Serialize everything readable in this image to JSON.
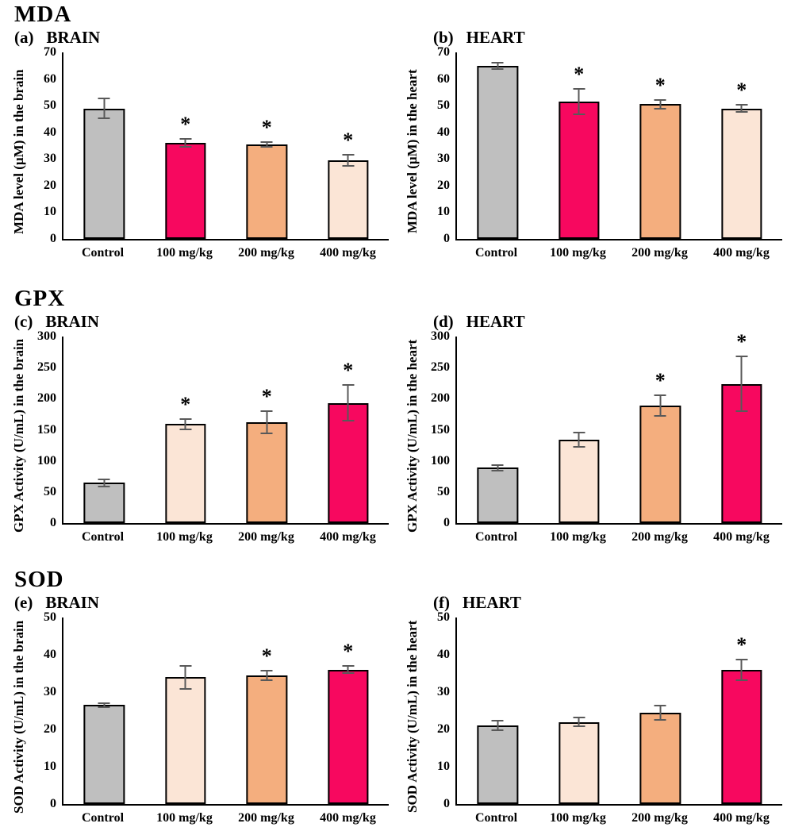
{
  "figure": {
    "background": "#FFFFFF",
    "significance_marker": "*",
    "palette": {
      "gray": "#BFBFBF",
      "pink": "#F7085F",
      "orange": "#F4AE7E",
      "cream": "#FBE5D6",
      "error_bar": "#595959",
      "bar_border": "#000000",
      "axis": "#000000",
      "text": "#000000"
    }
  },
  "chart_data": [
    {
      "type": "bar",
      "group_title": "MDA",
      "label": "(a)",
      "organ": "BRAIN",
      "ylabel": "MDA level (µM) in the brain",
      "xlabel": "",
      "ylim": [
        0,
        70
      ],
      "yticks": [
        "0",
        "10",
        "20",
        "30",
        "40",
        "50",
        "60",
        "70"
      ],
      "categories": [
        "Control",
        "100 mg/kg",
        "200 mg/kg",
        "400 mg/kg"
      ],
      "values": [
        49,
        36,
        35.5,
        29.5
      ],
      "errors": [
        4,
        1.8,
        1.2,
        2.5
      ],
      "significant": [
        false,
        true,
        true,
        true
      ],
      "colors": [
        "gray",
        "pink",
        "orange",
        "cream"
      ],
      "grid": false,
      "legend": null
    },
    {
      "type": "bar",
      "group_title": null,
      "label": "(b)",
      "organ": "HEART",
      "ylabel": "MDA level (µM) in the heart",
      "xlabel": "",
      "ylim": [
        0,
        70
      ],
      "yticks": [
        "0",
        "10",
        "20",
        "30",
        "40",
        "50",
        "60",
        "70"
      ],
      "categories": [
        "Control",
        "100 mg/kg",
        "200 mg/kg",
        "400 mg/kg"
      ],
      "values": [
        65,
        51.5,
        50.5,
        49
      ],
      "errors": [
        1.5,
        5,
        2,
        1.5
      ],
      "significant": [
        false,
        true,
        true,
        true
      ],
      "colors": [
        "gray",
        "pink",
        "orange",
        "cream"
      ],
      "grid": false,
      "legend": null
    },
    {
      "type": "bar",
      "group_title": "GPX",
      "label": "(c)",
      "organ": "BRAIN",
      "ylabel": "GPX Activity (U/mL) in the brain",
      "xlabel": "",
      "ylim": [
        0,
        300
      ],
      "yticks": [
        "0",
        "50",
        "100",
        "150",
        "200",
        "250",
        "300"
      ],
      "categories": [
        "Control",
        "100 mg/kg",
        "200 mg/kg",
        "400 mg/kg"
      ],
      "values": [
        65,
        159,
        162,
        193
      ],
      "errors": [
        7,
        10,
        19,
        30
      ],
      "significant": [
        false,
        true,
        true,
        true
      ],
      "colors": [
        "gray",
        "cream",
        "orange",
        "pink"
      ],
      "grid": false,
      "legend": null
    },
    {
      "type": "bar",
      "group_title": null,
      "label": "(d)",
      "organ": "HEART",
      "ylabel": "GPX Activity (U/mL) in the heart",
      "xlabel": "",
      "ylim": [
        0,
        300
      ],
      "yticks": [
        "0",
        "50",
        "100",
        "150",
        "200",
        "250",
        "300"
      ],
      "categories": [
        "Control",
        "100 mg/kg",
        "200 mg/kg",
        "400 mg/kg"
      ],
      "values": [
        89,
        134,
        189,
        224
      ],
      "errors": [
        6,
        13,
        18,
        45
      ],
      "significant": [
        false,
        false,
        true,
        true
      ],
      "colors": [
        "gray",
        "cream",
        "orange",
        "pink"
      ],
      "grid": false,
      "legend": null
    },
    {
      "type": "bar",
      "group_title": "SOD",
      "label": "(e)",
      "organ": "BRAIN",
      "ylabel": "SOD Activity (U/mL) in the brain",
      "xlabel": "",
      "ylim": [
        0,
        50
      ],
      "yticks": [
        "0",
        "10",
        "20",
        "30",
        "40",
        "50"
      ],
      "categories": [
        "Control",
        "100 mg/kg",
        "200 mg/kg",
        "400 mg/kg"
      ],
      "values": [
        26.5,
        34,
        34.5,
        36
      ],
      "errors": [
        0.7,
        3.3,
        1.5,
        1.2
      ],
      "significant": [
        false,
        false,
        true,
        true
      ],
      "colors": [
        "gray",
        "cream",
        "orange",
        "pink"
      ],
      "grid": false,
      "legend": null
    },
    {
      "type": "bar",
      "group_title": null,
      "label": "(f)",
      "organ": "HEART",
      "ylabel": "SOD Activity (U/mL) in the heart",
      "xlabel": "",
      "ylim": [
        0,
        50
      ],
      "yticks": [
        "0",
        "10",
        "20",
        "30",
        "40",
        "50"
      ],
      "categories": [
        "Control",
        "100 mg/kg",
        "200 mg/kg",
        "400 mg/kg"
      ],
      "values": [
        21,
        22,
        24.5,
        36
      ],
      "errors": [
        1.5,
        1.4,
        2.2,
        3
      ],
      "significant": [
        false,
        false,
        false,
        true
      ],
      "colors": [
        "gray",
        "cream",
        "orange",
        "pink"
      ],
      "grid": false,
      "legend": null
    }
  ]
}
